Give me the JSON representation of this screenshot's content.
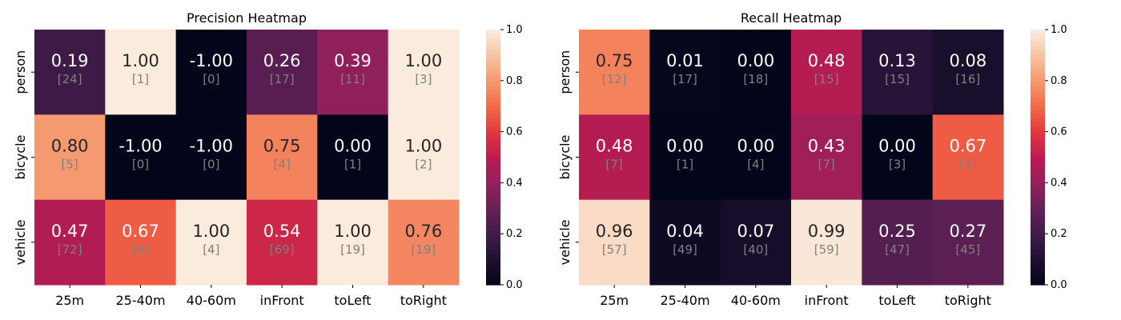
{
  "chart_data": [
    {
      "type": "heatmap",
      "title": "Precision Heatmap",
      "xlabel": "",
      "ylabel": "",
      "categories": [
        "25m",
        "25-40m",
        "40-60m",
        "inFront",
        "toLeft",
        "toRight"
      ],
      "rows": [
        "person",
        "bicycle",
        "vehicle"
      ],
      "values": [
        [
          0.19,
          1.0,
          -1.0,
          0.26,
          0.39,
          1.0
        ],
        [
          0.8,
          -1.0,
          -1.0,
          0.75,
          0.0,
          1.0
        ],
        [
          0.47,
          0.67,
          1.0,
          0.54,
          1.0,
          0.76
        ]
      ],
      "value_labels": [
        [
          "0.19",
          "1.00",
          "-1.00",
          "0.26",
          "0.39",
          "1.00"
        ],
        [
          "0.80",
          "-1.00",
          "-1.00",
          "0.75",
          "0.00",
          "1.00"
        ],
        [
          "0.47",
          "0.67",
          "1.00",
          "0.54",
          "1.00",
          "0.76"
        ]
      ],
      "counts": [
        [
          "[24]",
          "[1]",
          "[0]",
          "[17]",
          "[11]",
          "[3]"
        ],
        [
          "[5]",
          "[0]",
          "[0]",
          "[4]",
          "[1]",
          "[2]"
        ],
        [
          "[72]",
          "[6]",
          "[4]",
          "[69]",
          "[19]",
          "[19]"
        ]
      ],
      "colorbar": {
        "range": [
          0.0,
          1.0
        ],
        "ticks": [
          "0.0",
          "0.2",
          "0.4",
          "0.6",
          "0.8",
          "1.0"
        ]
      },
      "colormap": "rocket"
    },
    {
      "type": "heatmap",
      "title": "Recall Heatmap",
      "xlabel": "",
      "ylabel": "",
      "categories": [
        "25m",
        "25-40m",
        "40-60m",
        "inFront",
        "toLeft",
        "toRight"
      ],
      "rows": [
        "person",
        "bicycle",
        "vehicle"
      ],
      "values": [
        [
          0.75,
          0.01,
          0.0,
          0.48,
          0.13,
          0.08
        ],
        [
          0.48,
          0.0,
          0.0,
          0.43,
          0.0,
          0.67
        ],
        [
          0.96,
          0.04,
          0.07,
          0.99,
          0.25,
          0.27
        ]
      ],
      "value_labels": [
        [
          "0.75",
          "0.01",
          "0.00",
          "0.48",
          "0.13",
          "0.08"
        ],
        [
          "0.48",
          "0.00",
          "0.00",
          "0.43",
          "0.00",
          "0.67"
        ],
        [
          "0.96",
          "0.04",
          "0.07",
          "0.99",
          "0.25",
          "0.27"
        ]
      ],
      "counts": [
        [
          "[12]",
          "[17]",
          "[18]",
          "[15]",
          "[15]",
          "[16]"
        ],
        [
          "[7]",
          "[1]",
          "[4]",
          "[7]",
          "[3]",
          "[3]"
        ],
        [
          "[57]",
          "[49]",
          "[40]",
          "[59]",
          "[47]",
          "[45]"
        ]
      ],
      "colorbar": {
        "range": [
          0.0,
          1.0
        ],
        "ticks": [
          "0.0",
          "0.2",
          "0.4",
          "0.6",
          "0.8",
          "1.0"
        ]
      },
      "colormap": "rocket"
    }
  ]
}
